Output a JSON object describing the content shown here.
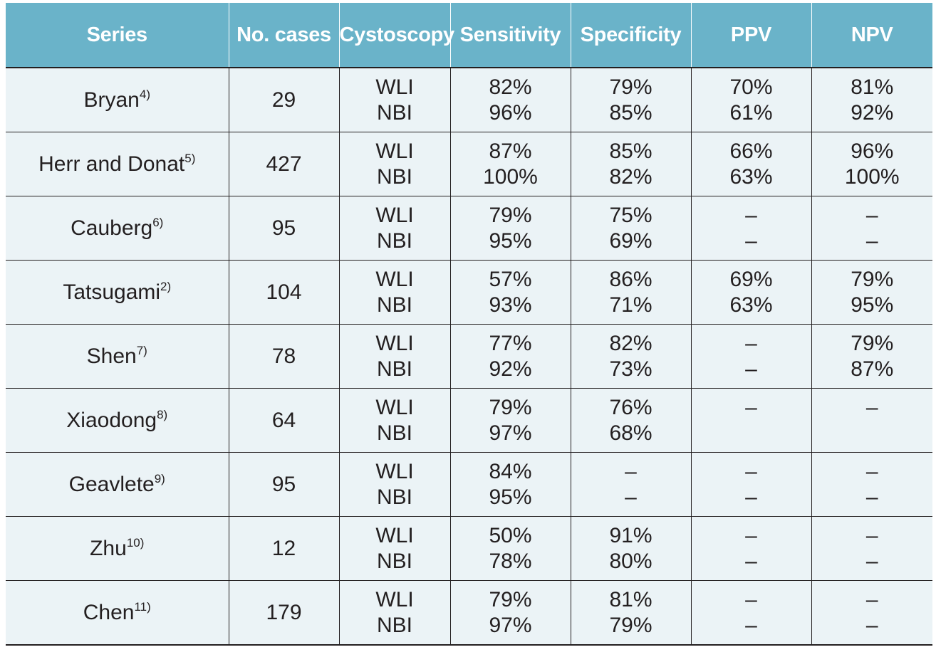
{
  "headers": [
    "Series",
    "No. cases",
    "Cystoscopy",
    "Sensitivity",
    "Specificity",
    "PPV",
    "NPV"
  ],
  "rows": [
    {
      "series": "Bryan",
      "ref": "4)",
      "cases": "29",
      "cysto": [
        "WLI",
        "NBI"
      ],
      "sens": [
        "82%",
        "96%"
      ],
      "spec": [
        "79%",
        "85%"
      ],
      "ppv": [
        "70%",
        "61%"
      ],
      "npv": [
        "81%",
        "92%"
      ]
    },
    {
      "series": "Herr and Donat",
      "ref": "5)",
      "cases": "427",
      "cysto": [
        "WLI",
        "NBI"
      ],
      "sens": [
        "87%",
        "100%"
      ],
      "spec": [
        "85%",
        "82%"
      ],
      "ppv": [
        "66%",
        "63%"
      ],
      "npv": [
        "96%",
        "100%"
      ]
    },
    {
      "series": "Cauberg",
      "ref": "6)",
      "cases": "95",
      "cysto": [
        "WLI",
        "NBI"
      ],
      "sens": [
        "79%",
        "95%"
      ],
      "spec": [
        "75%",
        "69%"
      ],
      "ppv": [
        "–",
        "–"
      ],
      "npv": [
        "–",
        "–"
      ]
    },
    {
      "series": "Tatsugami",
      "ref": "2)",
      "cases": "104",
      "cysto": [
        "WLI",
        "NBI"
      ],
      "sens": [
        "57%",
        "93%"
      ],
      "spec": [
        "86%",
        "71%"
      ],
      "ppv": [
        "69%",
        "63%"
      ],
      "npv": [
        "79%",
        "95%"
      ]
    },
    {
      "series": "Shen",
      "ref": "7)",
      "cases": "78",
      "cysto": [
        "WLI",
        "NBI"
      ],
      "sens": [
        "77%",
        "92%"
      ],
      "spec": [
        "82%",
        "73%"
      ],
      "ppv": [
        "–",
        "–"
      ],
      "npv": [
        "79%",
        "87%"
      ]
    },
    {
      "series": "Xiaodong",
      "ref": "8)",
      "cases": "64",
      "cysto": [
        "WLI",
        "NBI"
      ],
      "sens": [
        "79%",
        "97%"
      ],
      "spec": [
        "76%",
        "68%"
      ],
      "ppv": [
        "–",
        ""
      ],
      "npv": [
        "–",
        ""
      ]
    },
    {
      "series": "Geavlete",
      "ref": "9)",
      "cases": "95",
      "cysto": [
        "WLI",
        "NBI"
      ],
      "sens": [
        "84%",
        "95%"
      ],
      "spec": [
        "–",
        "–"
      ],
      "ppv": [
        "–",
        "–"
      ],
      "npv": [
        "–",
        "–"
      ]
    },
    {
      "series": "Zhu",
      "ref": "10)",
      "cases": "12",
      "cysto": [
        "WLI",
        "NBI"
      ],
      "sens": [
        "50%",
        "78%"
      ],
      "spec": [
        "91%",
        "80%"
      ],
      "ppv": [
        "–",
        "–"
      ],
      "npv": [
        "–",
        "–"
      ]
    },
    {
      "series": "Chen",
      "ref": "11)",
      "cases": "179",
      "cysto": [
        "WLI",
        "NBI"
      ],
      "sens": [
        "79%",
        "97%"
      ],
      "spec": [
        "81%",
        "79%"
      ],
      "ppv": [
        "–",
        "–"
      ],
      "npv": [
        "–",
        "–"
      ]
    }
  ],
  "colors": {
    "header_bg": "#6ab3c9",
    "cell_bg": "#ebf3f6",
    "text": "#231f20"
  }
}
